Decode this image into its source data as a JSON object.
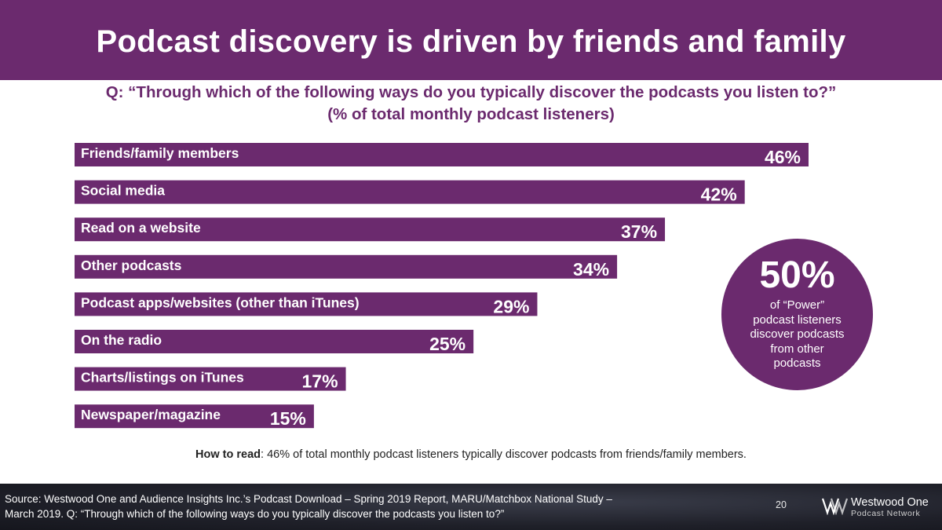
{
  "header": {
    "title": "Podcast discovery is driven by friends and family"
  },
  "question": {
    "line1": "Q: “Through which of the following ways do you typically discover the podcasts you listen to?”",
    "line2": "(% of total monthly podcast listeners)"
  },
  "chart_data": {
    "type": "bar",
    "orientation": "horizontal",
    "title": "Q: “Through which of the following ways do you typically discover the podcasts you listen to?” (% of total monthly podcast listeners)",
    "categories": [
      "Friends/family members",
      "Social media",
      "Read on a website",
      "Other podcasts",
      "Podcast apps/websites (other than iTunes)",
      "On the radio",
      "Charts/listings on iTunes",
      "Newspaper/magazine"
    ],
    "values": [
      46,
      42,
      37,
      34,
      29,
      25,
      17,
      15
    ],
    "value_labels": [
      "46%",
      "42%",
      "37%",
      "34%",
      "29%",
      "25%",
      "17%",
      "15%"
    ],
    "unit": "%",
    "xlim": [
      0,
      46
    ],
    "bar_color": "#6b2a6e"
  },
  "callout": {
    "value": "50%",
    "lines": [
      "of “Power”",
      "podcast listeners",
      "discover podcasts",
      "from other",
      "podcasts"
    ]
  },
  "how_to_read": {
    "label": "How to read",
    "text": ": 46% of total monthly podcast listeners typically discover podcasts from friends/family members."
  },
  "footer": {
    "source_line1": "Source: Westwood One and Audience Insights Inc.’s Podcast Download – Spring 2019 Report, MARU/Matchbox National Study –",
    "source_line2": "March 2019. Q: “Through which of the following ways do you typically discover the podcasts you listen to?”",
    "page_number": "20",
    "logo_name": "Westwood One",
    "logo_sub": "Podcast Network"
  }
}
